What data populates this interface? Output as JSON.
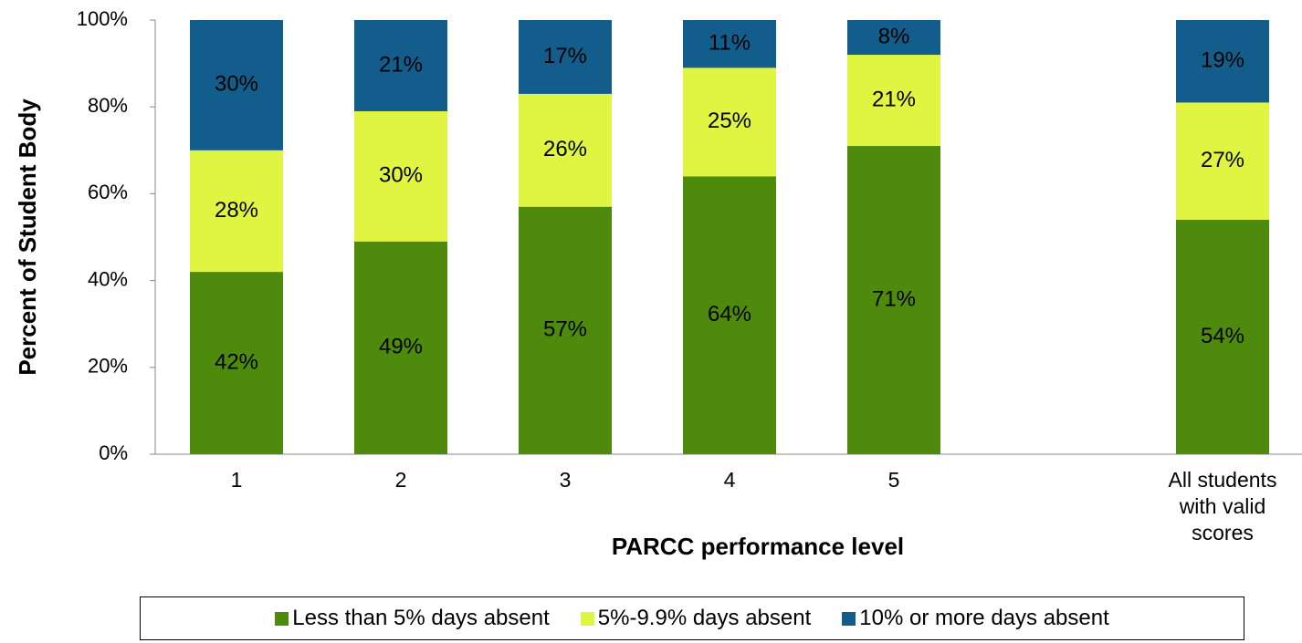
{
  "chart_data": {
    "type": "stacked_bar",
    "x_label": "PARCC performance level",
    "y_label": "Percent of Student Body",
    "categories": [
      "1",
      "2",
      "3",
      "4",
      "5",
      null,
      "All students with valid scores"
    ],
    "series": [
      {
        "name": "Less than 5% days absent",
        "color": "#4e8a0b",
        "values": [
          42,
          49,
          57,
          64,
          71,
          null,
          54
        ],
        "value_labels": [
          "42%",
          "49%",
          "57%",
          "64%",
          "71%",
          null,
          "54%"
        ]
      },
      {
        "name": "5%-9.9% days absent",
        "color": "#dff542",
        "values": [
          28,
          30,
          26,
          25,
          21,
          null,
          27
        ],
        "value_labels": [
          "28%",
          "30%",
          "26%",
          "25%",
          "21%",
          null,
          "27%"
        ]
      },
      {
        "name": "10% or more days absent",
        "color": "#125d8b",
        "values": [
          30,
          21,
          17,
          11,
          8,
          null,
          19
        ],
        "value_labels": [
          "30%",
          "21%",
          "17%",
          "11%",
          "8%",
          null,
          "19%"
        ]
      }
    ],
    "ylim": [
      0,
      100
    ],
    "yticks": [
      {
        "value": 0,
        "label": "0%"
      },
      {
        "value": 20,
        "label": "20%"
      },
      {
        "value": 40,
        "label": "40%"
      },
      {
        "value": 60,
        "label": "60%"
      },
      {
        "value": 80,
        "label": "80%"
      },
      {
        "value": 100,
        "label": "100%"
      }
    ],
    "grid": false,
    "legend": "bottom"
  }
}
